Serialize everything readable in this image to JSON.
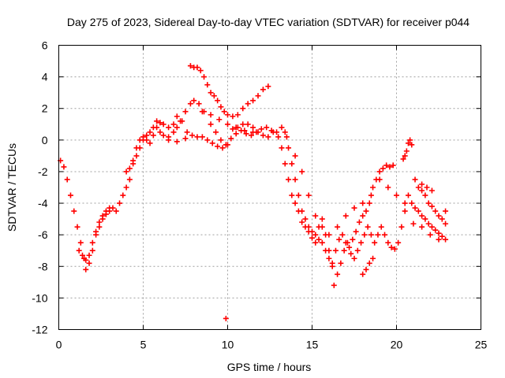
{
  "chart_data": {
    "type": "scatter",
    "title": "Day 275 of 2023, Sidereal Day-to-day VTEC variation (SDTVAR) for receiver p044",
    "xlabel": "GPS time / hours",
    "ylabel": "SDTVAR / TECUs",
    "xlim": [
      0,
      25
    ],
    "ylim": [
      -12,
      6
    ],
    "xticks": [
      0,
      5,
      10,
      15,
      20,
      25
    ],
    "yticks": [
      -12,
      -10,
      -8,
      -6,
      -4,
      -2,
      0,
      2,
      4,
      6
    ],
    "grid": true,
    "marker": "plus",
    "color": "#ff0000",
    "series": [
      {
        "points": [
          [
            0.1,
            -1.3
          ],
          [
            0.3,
            -1.7
          ],
          [
            0.5,
            -2.5
          ],
          [
            0.7,
            -3.5
          ],
          [
            0.9,
            -4.5
          ],
          [
            1.1,
            -5.5
          ],
          [
            1.3,
            -6.5
          ],
          [
            1.5,
            -7.5
          ],
          [
            1.6,
            -8.2
          ],
          [
            1.8,
            -7.8
          ],
          [
            2.0,
            -7.0
          ],
          [
            2.2,
            -6.0
          ],
          [
            2.4,
            -5.5
          ],
          [
            2.6,
            -5.0
          ],
          [
            2.8,
            -4.7
          ],
          [
            3.0,
            -4.5
          ],
          [
            3.2,
            -4.3
          ],
          [
            3.4,
            -4.5
          ],
          [
            3.6,
            -4.0
          ],
          [
            3.8,
            -3.5
          ],
          [
            4.0,
            -3.0
          ],
          [
            4.2,
            -2.5
          ],
          [
            4.4,
            -1.5
          ],
          [
            4.6,
            -1.0
          ],
          [
            4.8,
            -0.5
          ],
          [
            5.0,
            0.0
          ],
          [
            5.2,
            0.3
          ],
          [
            5.4,
            0.5
          ],
          [
            5.6,
            0.8
          ],
          [
            5.8,
            1.2
          ],
          [
            6.0,
            0.5
          ],
          [
            6.2,
            0.3
          ],
          [
            6.5,
            0.2
          ],
          [
            6.8,
            0.5
          ],
          [
            7.0,
            0.8
          ],
          [
            7.2,
            1.2
          ],
          [
            7.5,
            1.8
          ],
          [
            7.8,
            2.3
          ],
          [
            8.0,
            2.5
          ],
          [
            8.3,
            2.3
          ],
          [
            8.6,
            1.8
          ],
          [
            9.0,
            1.0
          ],
          [
            9.3,
            0.5
          ],
          [
            9.6,
            0.0
          ],
          [
            9.9,
            -0.3
          ],
          [
            10.2,
            0.1
          ],
          [
            10.5,
            0.4
          ],
          [
            10.8,
            0.6
          ],
          [
            11.1,
            0.4
          ],
          [
            11.4,
            0.3
          ],
          [
            11.7,
            0.5
          ],
          [
            12.0,
            0.7
          ],
          [
            12.3,
            0.8
          ],
          [
            12.6,
            0.6
          ],
          [
            12.9,
            0.5
          ],
          [
            13.2,
            0.8
          ],
          [
            13.4,
            0.5
          ],
          [
            13.6,
            -0.5
          ],
          [
            13.8,
            -1.5
          ],
          [
            14.0,
            -2.5
          ],
          [
            14.2,
            -3.5
          ],
          [
            14.4,
            -4.5
          ],
          [
            14.6,
            -5.0
          ],
          [
            14.8,
            -5.5
          ],
          [
            15.0,
            -5.8
          ],
          [
            15.2,
            -6.0
          ],
          [
            15.4,
            -5.5
          ],
          [
            15.6,
            -5.0
          ],
          [
            15.8,
            -6.0
          ],
          [
            16.0,
            -7.0
          ],
          [
            16.2,
            -8.0
          ],
          [
            16.3,
            -9.2
          ],
          [
            16.5,
            -8.5
          ],
          [
            16.7,
            -7.8
          ],
          [
            16.9,
            -7.0
          ],
          [
            17.1,
            -6.5
          ],
          [
            17.3,
            -7.2
          ],
          [
            17.5,
            -7.5
          ],
          [
            17.7,
            -7.0
          ],
          [
            17.9,
            -6.5
          ],
          [
            18.1,
            -6.0
          ],
          [
            18.3,
            -5.5
          ],
          [
            18.5,
            -6.0
          ],
          [
            18.7,
            -6.5
          ],
          [
            18.9,
            -6.0
          ],
          [
            19.1,
            -5.5
          ],
          [
            19.3,
            -6.0
          ],
          [
            19.5,
            -6.5
          ],
          [
            19.7,
            -6.8
          ],
          [
            19.9,
            -6.9
          ],
          [
            20.1,
            -6.5
          ],
          [
            20.3,
            -5.5
          ],
          [
            20.5,
            -4.5
          ],
          [
            20.7,
            -3.5
          ],
          [
            20.9,
            -4.0
          ],
          [
            21.1,
            -4.3
          ],
          [
            21.3,
            -4.5
          ],
          [
            21.5,
            -4.8
          ],
          [
            21.7,
            -5.0
          ],
          [
            21.9,
            -5.3
          ],
          [
            22.1,
            -5.5
          ],
          [
            22.3,
            -5.7
          ],
          [
            22.5,
            -5.9
          ],
          [
            22.7,
            -6.1
          ],
          [
            22.9,
            -6.3
          ]
        ]
      },
      {
        "points": [
          [
            1.2,
            -7.0
          ],
          [
            1.4,
            -7.3
          ],
          [
            1.6,
            -7.6
          ],
          [
            1.8,
            -7.3
          ],
          [
            2.0,
            -6.5
          ],
          [
            2.2,
            -5.8
          ],
          [
            2.4,
            -5.2
          ],
          [
            2.6,
            -4.8
          ],
          [
            2.8,
            -4.5
          ],
          [
            3.0,
            -4.3
          ],
          [
            4.0,
            -2.0
          ],
          [
            4.2,
            -1.8
          ],
          [
            4.4,
            -1.3
          ],
          [
            4.6,
            -0.5
          ],
          [
            4.8,
            0.0
          ],
          [
            5.0,
            0.2
          ],
          [
            5.2,
            0.0
          ],
          [
            5.4,
            -0.2
          ],
          [
            5.6,
            0.3
          ],
          [
            5.8,
            0.8
          ],
          [
            6.0,
            1.1
          ],
          [
            6.2,
            1.0
          ],
          [
            6.5,
            0.8
          ],
          [
            6.8,
            1.0
          ],
          [
            7.0,
            1.5
          ],
          [
            7.3,
            1.2
          ],
          [
            7.6,
            0.5
          ],
          [
            7.9,
            0.3
          ],
          [
            8.2,
            0.2
          ],
          [
            8.5,
            0.2
          ],
          [
            8.8,
            0.0
          ],
          [
            9.1,
            -0.2
          ],
          [
            9.4,
            -0.4
          ],
          [
            9.7,
            -0.5
          ],
          [
            10.0,
            -0.3
          ],
          [
            10.3,
            0.7
          ],
          [
            10.6,
            0.8
          ],
          [
            10.9,
            1.0
          ],
          [
            11.2,
            1.0
          ],
          [
            11.5,
            0.8
          ],
          [
            11.8,
            0.5
          ],
          [
            12.1,
            0.3
          ],
          [
            12.4,
            0.2
          ],
          [
            12.7,
            0.5
          ],
          [
            13.0,
            0.2
          ],
          [
            13.2,
            -0.5
          ],
          [
            13.4,
            -1.5
          ],
          [
            13.6,
            -2.5
          ],
          [
            13.8,
            -3.5
          ],
          [
            14.0,
            -4.0
          ],
          [
            14.2,
            -4.5
          ],
          [
            14.4,
            -5.2
          ],
          [
            14.6,
            -5.5
          ],
          [
            14.8,
            -5.8
          ],
          [
            15.0,
            -6.2
          ],
          [
            15.2,
            -6.5
          ],
          [
            15.4,
            -6.3
          ],
          [
            15.6,
            -6.5
          ],
          [
            15.8,
            -7.0
          ],
          [
            16.0,
            -7.5
          ],
          [
            16.2,
            -7.8
          ],
          [
            16.4,
            -7.0
          ],
          [
            16.6,
            -6.3
          ],
          [
            16.8,
            -6.0
          ],
          [
            17.0,
            -6.5
          ],
          [
            17.2,
            -6.8
          ],
          [
            17.4,
            -6.3
          ],
          [
            17.6,
            -5.8
          ],
          [
            17.8,
            -5.2
          ],
          [
            18.0,
            -4.8
          ],
          [
            18.2,
            -4.5
          ],
          [
            18.4,
            -4.0
          ],
          [
            18.6,
            -3.0
          ],
          [
            18.8,
            -2.5
          ],
          [
            19.0,
            -2.0
          ],
          [
            19.2,
            -1.8
          ],
          [
            19.4,
            -1.6
          ],
          [
            19.6,
            -1.7
          ],
          [
            19.8,
            -1.6
          ],
          [
            20.4,
            -1.2
          ],
          [
            20.5,
            -1.0
          ],
          [
            20.6,
            -0.7
          ],
          [
            20.7,
            -0.2
          ],
          [
            20.8,
            0.0
          ],
          [
            20.9,
            -0.3
          ],
          [
            21.1,
            -2.5
          ],
          [
            21.3,
            -3.0
          ],
          [
            21.5,
            -3.2
          ],
          [
            21.7,
            -3.5
          ],
          [
            21.9,
            -4.0
          ],
          [
            22.1,
            -4.2
          ],
          [
            22.3,
            -4.5
          ],
          [
            22.5,
            -4.8
          ],
          [
            22.7,
            -5.0
          ],
          [
            22.9,
            -5.3
          ]
        ]
      },
      {
        "points": [
          [
            6.5,
            0.0
          ],
          [
            7.0,
            -0.1
          ],
          [
            7.5,
            0.1
          ],
          [
            7.8,
            4.7
          ],
          [
            8.0,
            4.6
          ],
          [
            8.2,
            4.6
          ],
          [
            8.4,
            4.4
          ],
          [
            8.6,
            4.0
          ],
          [
            8.8,
            3.5
          ],
          [
            9.0,
            3.0
          ],
          [
            9.2,
            2.8
          ],
          [
            9.4,
            2.5
          ],
          [
            9.6,
            2.1
          ],
          [
            9.8,
            1.8
          ],
          [
            10.0,
            1.6
          ],
          [
            10.3,
            1.5
          ],
          [
            10.6,
            1.6
          ],
          [
            10.9,
            2.0
          ],
          [
            11.2,
            2.3
          ],
          [
            11.5,
            2.5
          ],
          [
            11.8,
            2.8
          ],
          [
            12.1,
            3.2
          ],
          [
            12.4,
            3.4
          ],
          [
            8.5,
            1.8
          ],
          [
            9.0,
            1.6
          ],
          [
            9.5,
            1.3
          ],
          [
            10.0,
            1.0
          ],
          [
            10.5,
            0.8
          ],
          [
            11.0,
            0.6
          ],
          [
            11.5,
            0.5
          ],
          [
            13.5,
            0.2
          ],
          [
            14.0,
            -1.0
          ],
          [
            14.4,
            -2.0
          ],
          [
            14.8,
            -3.5
          ],
          [
            15.2,
            -4.8
          ],
          [
            15.6,
            -5.5
          ],
          [
            16.0,
            -6.0
          ],
          [
            16.5,
            -5.5
          ],
          [
            17.0,
            -4.8
          ],
          [
            17.5,
            -4.3
          ],
          [
            18.0,
            -4.0
          ],
          [
            18.5,
            -3.5
          ],
          [
            18.0,
            -8.5
          ],
          [
            18.2,
            -8.2
          ],
          [
            18.4,
            -7.8
          ],
          [
            18.6,
            -7.5
          ],
          [
            19.0,
            -2.5
          ],
          [
            19.5,
            -3.0
          ],
          [
            20.0,
            -3.5
          ],
          [
            20.5,
            -4.0
          ],
          [
            21.0,
            -5.3
          ],
          [
            21.5,
            -5.5
          ],
          [
            22.0,
            -6.0
          ],
          [
            22.5,
            -6.3
          ],
          [
            22.9,
            -4.5
          ],
          [
            21.5,
            -2.8
          ],
          [
            21.8,
            -3.0
          ],
          [
            22.1,
            -3.2
          ],
          [
            9.9,
            -11.3
          ]
        ]
      }
    ]
  }
}
